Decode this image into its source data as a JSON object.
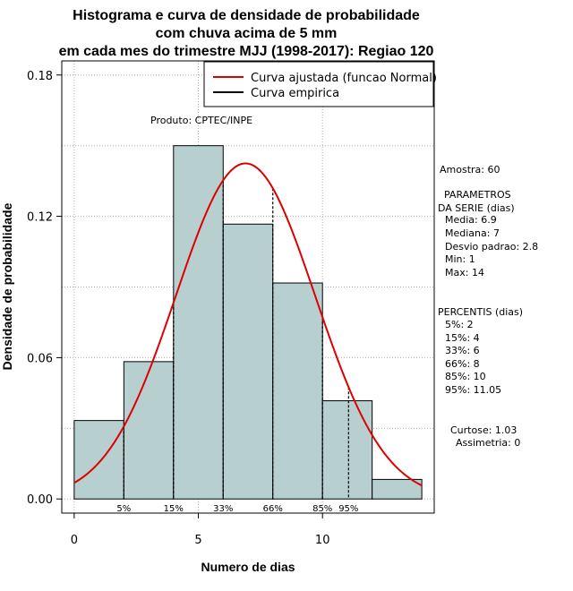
{
  "chart_data": {
    "type": "bar",
    "title_lines": [
      "Histograma e curva de densidade de probabilidade",
      "com chuva acima de 5 mm",
      "em cada mes do trimestre MJJ (1998-2017): Regiao 120"
    ],
    "xlabel": "Numero de dias",
    "ylabel": "Densidade de probabilidade",
    "xlim": [
      -0.5,
      14.5
    ],
    "ylim": [
      -0.006,
      0.186
    ],
    "x_ticks": [
      0,
      5,
      10
    ],
    "y_ticks": [
      0.0,
      0.06,
      0.12,
      0.18
    ],
    "y_tick_labels": [
      "0.00",
      "0.06",
      "0.12",
      "0.18"
    ],
    "bins": [
      {
        "start": 0,
        "end": 2,
        "density": 0.0333
      },
      {
        "start": 2,
        "end": 4,
        "density": 0.0583
      },
      {
        "start": 4,
        "end": 6,
        "density": 0.15
      },
      {
        "start": 6,
        "end": 8,
        "density": 0.1167
      },
      {
        "start": 8,
        "end": 10,
        "density": 0.0917
      },
      {
        "start": 10,
        "end": 12,
        "density": 0.0417
      },
      {
        "start": 12,
        "end": 14,
        "density": 0.0083
      }
    ],
    "normal_fit": {
      "mean": 6.9,
      "sd": 2.8,
      "x_range": [
        0,
        14
      ]
    },
    "percentile_markers": [
      {
        "label": "5%",
        "x": 2
      },
      {
        "label": "15%",
        "x": 4
      },
      {
        "label": "33%",
        "x": 6
      },
      {
        "label": "66%",
        "x": 8
      },
      {
        "label": "85%",
        "x": 10
      },
      {
        "label": "95%",
        "x": 11.05
      }
    ],
    "legend": {
      "placement": "top-right",
      "entries": [
        {
          "label": "Curva ajustada (funcao Normal)",
          "color": "#dd0000"
        },
        {
          "label": "Curva empirica",
          "color": "#000000"
        }
      ]
    },
    "annotation": "Produto: CPTEC/INPE",
    "grid": true,
    "colors": {
      "bar_fill": "#b8cfcf",
      "curve": "#dd0000",
      "grid": "#b0b0b0"
    }
  },
  "side_panel": {
    "sample": "Amostra: 60",
    "params_title_1": "PARAMETROS",
    "params_title_2": "DA SERIE (dias)",
    "params": [
      "Media: 6.9",
      "Mediana: 7",
      "Desvio padrao: 2.8",
      "Min: 1",
      "Max: 14"
    ],
    "pct_title": "PERCENTIS (dias)",
    "pcts": [
      "5%: 2",
      "15%: 4",
      "33%: 6",
      "66%: 8",
      "85%: 10",
      "95%: 11.05"
    ],
    "kurtosis": "Curtose: 1.03",
    "skewness": "Assimetria: 0"
  }
}
